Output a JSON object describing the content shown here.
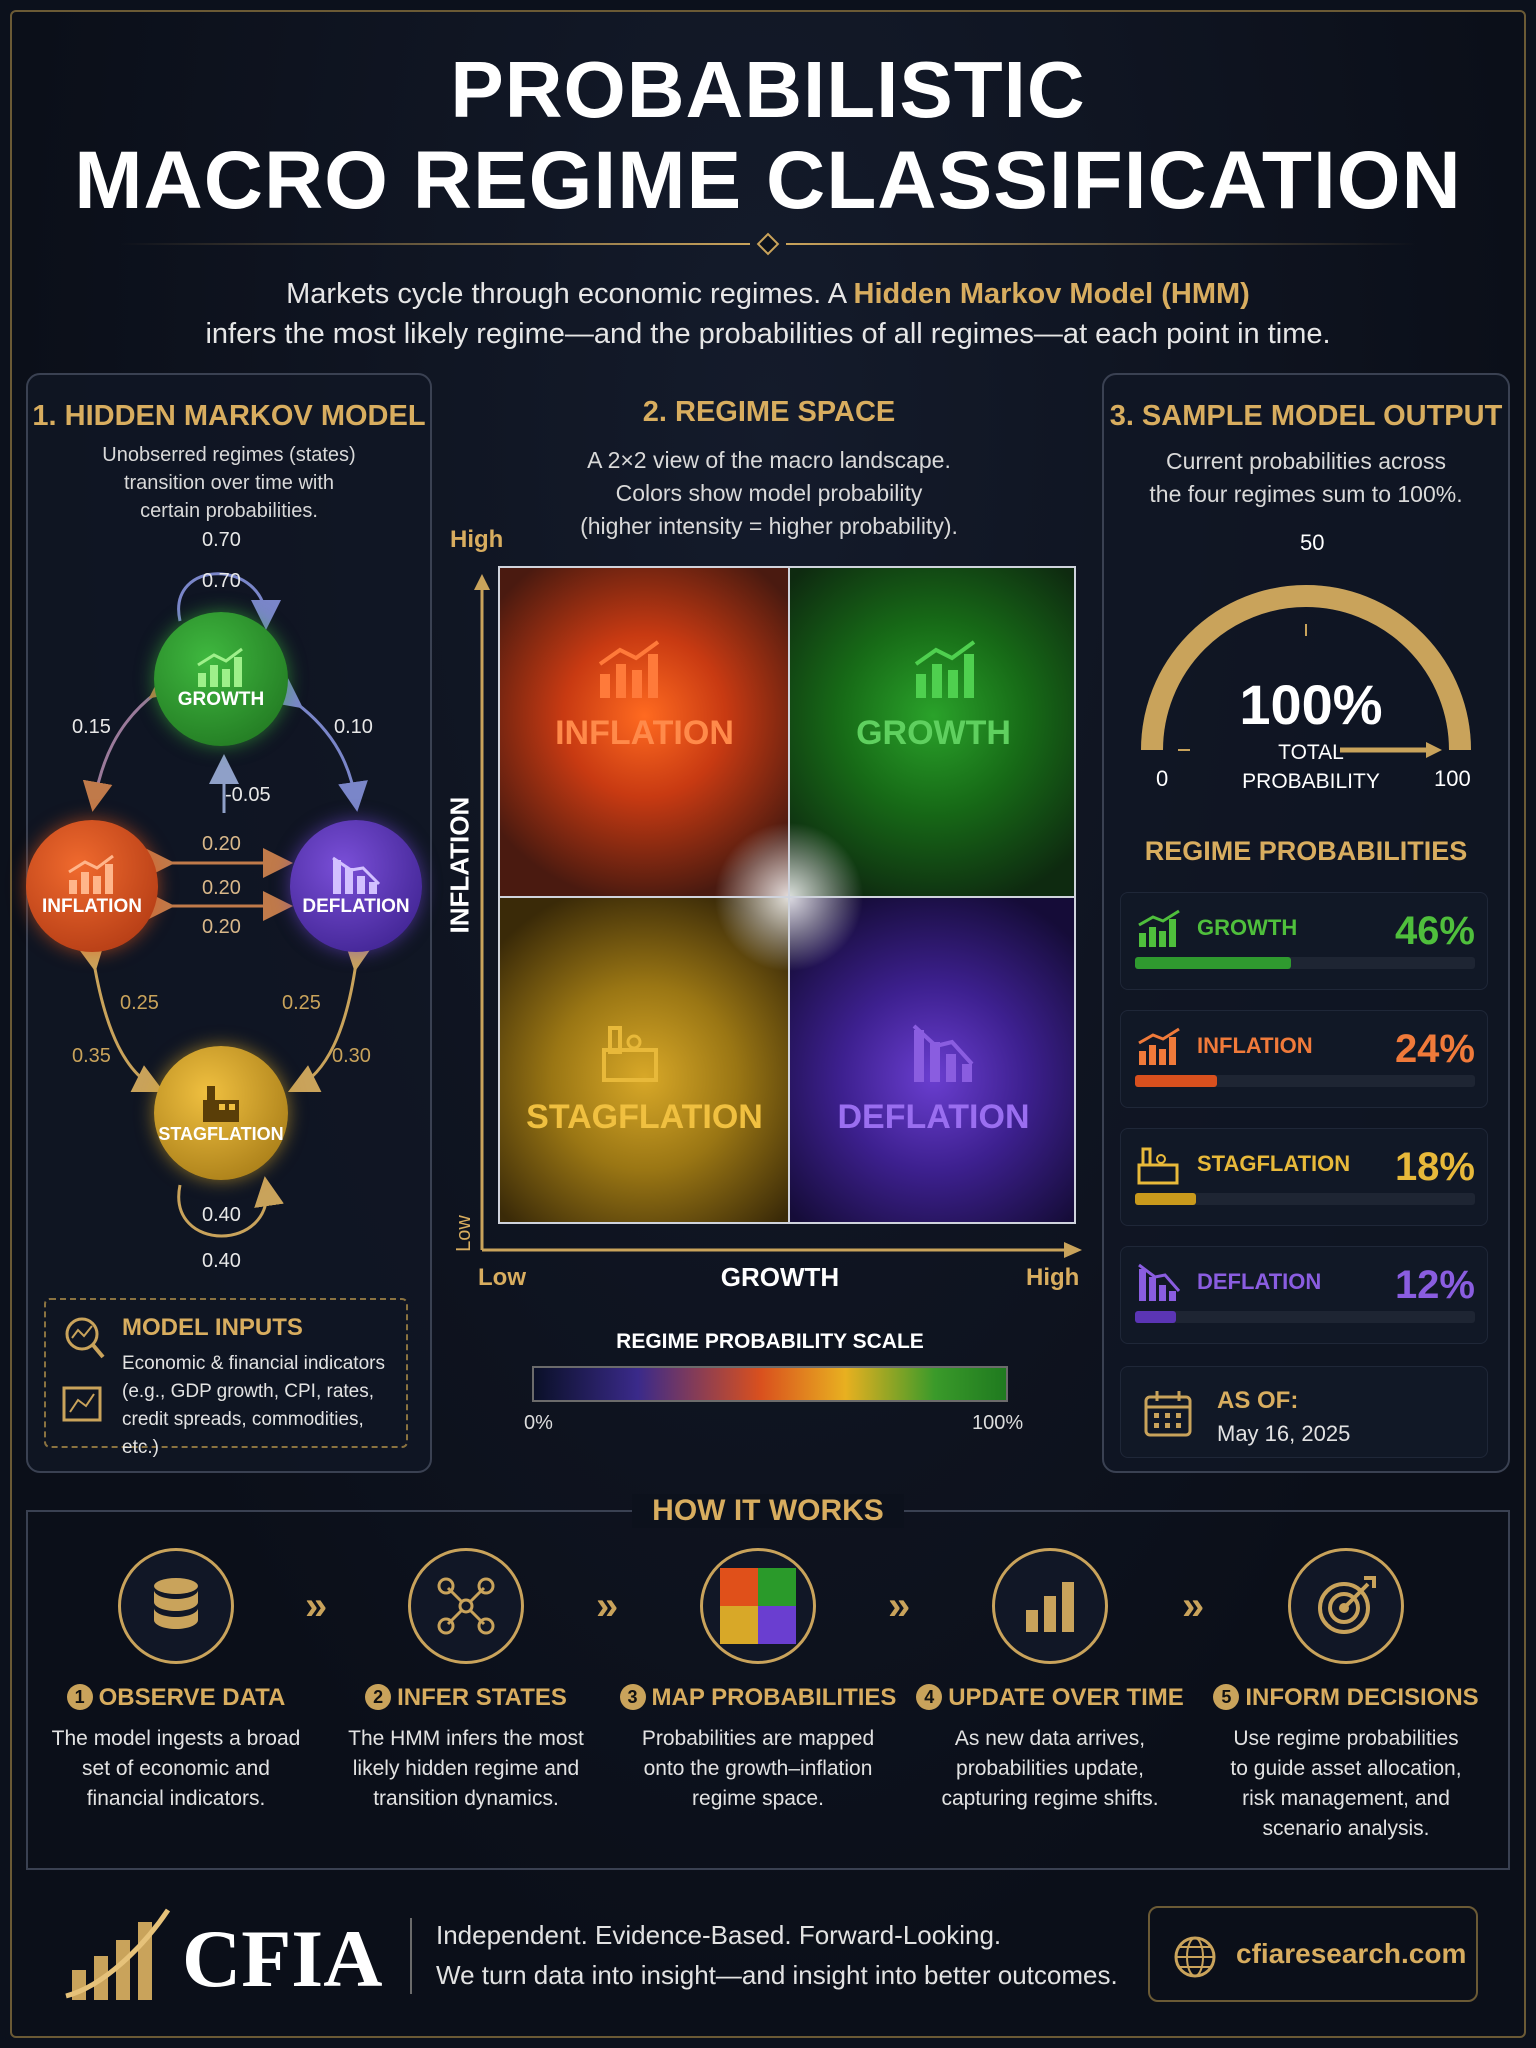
{
  "header": {
    "title_line1": "PROBABILISTIC",
    "title_line2": "MACRO REGIME CLASSIFICATION",
    "intro_line1_pre": "Markets cycle through economic regimes. A ",
    "intro_highlight": "Hidden Markov Model (HMM)",
    "intro_line2": "infers the most likely regime—and the probabilities of all regimes—at each point in time."
  },
  "hmm_panel": {
    "title": "1. HIDDEN MARKOV MODEL",
    "desc_lines": [
      "Unobserred regimes (states)",
      "transition over time with",
      "certain probabilities."
    ],
    "nodes": {
      "growth": "GROWTH",
      "inflation": "INFLATION",
      "deflation": "DEFLATION",
      "stagflation": "STAGFLATION"
    },
    "labels": {
      "growth_self_top": "0.70",
      "growth_self_inner": "0.70",
      "g_to_i": "0.15",
      "g_to_d": "0.10",
      "center": "-0.05",
      "id_1": "0.20",
      "id_2": "0.20",
      "id_3": "0.20",
      "i_to_s_inner": "0.25",
      "d_to_s_inner": "0.25",
      "i_to_s_outer": "0.35",
      "d_to_s_outer": "0.30",
      "stag_self_inner": "0.40",
      "stag_self_bottom": "0.40"
    },
    "inputs": {
      "title": "MODEL INPUTS",
      "lines": [
        "Economic & financial indicators",
        "(e.g., GDP growth, CPI, rates,",
        "credit spreads, commodities, etc.)"
      ]
    },
    "colors": {
      "growth": "#2f9a2f",
      "inflation": "#d9501e",
      "deflation": "#5b35b5",
      "stagflation": "#c9991c"
    }
  },
  "regime_panel": {
    "title": "2. REGIME SPACE",
    "desc_lines": [
      "A 2×2 view of the macro landscape.",
      "Colors show model probability",
      "(higher intensity = higher probability)."
    ],
    "y_axis": "INFLATION",
    "y_high": "High",
    "y_low": "Low",
    "x_axis": "GROWTH",
    "x_low": "Low",
    "x_high": "High",
    "quadrants": {
      "top_left": "INFLATION",
      "top_right": "GROWTH",
      "bottom_left": "STAGFLATION",
      "bottom_right": "DEFLATION"
    },
    "scale": {
      "title": "REGIME PROBABILITY SCALE",
      "min": "0%",
      "max": "100%"
    }
  },
  "output_panel": {
    "title": "3. SAMPLE MODEL OUTPUT",
    "desc_lines": [
      "Current probabilities across",
      "the four regimes sum to 100%."
    ],
    "gauge": {
      "value": "100%",
      "label_line1": "TOTAL",
      "label_line2": "PROBABILITY",
      "min": "0",
      "mid": "50",
      "max": "100",
      "fraction": 1.0
    },
    "probs_title": "REGIME PROBABILITIES",
    "regimes": [
      {
        "name": "GROWTH",
        "pct": "46%",
        "value": 0.46,
        "color": "#4fbf3c",
        "bar": "#2f9a2f"
      },
      {
        "name": "INFLATION",
        "pct": "24%",
        "value": 0.24,
        "color": "#f07a3a",
        "bar": "#d9501e"
      },
      {
        "name": "STAGFLATION",
        "pct": "18%",
        "value": 0.18,
        "color": "#e8b93a",
        "bar": "#c9991c"
      },
      {
        "name": "DEFLATION",
        "pct": "12%",
        "value": 0.12,
        "color": "#8a5de0",
        "bar": "#5b35b5"
      }
    ],
    "as_of_label": "AS OF:",
    "as_of_date": "May 16, 2025"
  },
  "how_it_works": {
    "title": "HOW IT WORKS",
    "chevron": "»",
    "steps": [
      {
        "num": "1",
        "title": "OBSERVE DATA",
        "desc": [
          "The model ingests a broad",
          "set of economic and",
          "financial indicators."
        ]
      },
      {
        "num": "2",
        "title": "INFER STATES",
        "desc": [
          "The HMM infers the most",
          "likely hidden regime and",
          "transition dynamics."
        ]
      },
      {
        "num": "3",
        "title": "MAP PROBABILITIES",
        "desc": [
          "Probabilities are mapped",
          "onto the growth–inflation",
          "regime space."
        ]
      },
      {
        "num": "4",
        "title": "UPDATE OVER TIME",
        "desc": [
          "As new data arrives,",
          "probabilities update,",
          "capturing regime shifts."
        ]
      },
      {
        "num": "5",
        "title": "INFORM DECISIONS",
        "desc": [
          "Use regime probabilities",
          "to guide asset allocation,",
          "risk management, and",
          "scenario analysis."
        ]
      }
    ]
  },
  "footer": {
    "brand": "CFIA",
    "tagline1": "Independent. Evidence-Based. Forward-Looking.",
    "tagline2": "We turn data into insight—and insight into better outcomes.",
    "website": "cfiaresearch.com"
  }
}
